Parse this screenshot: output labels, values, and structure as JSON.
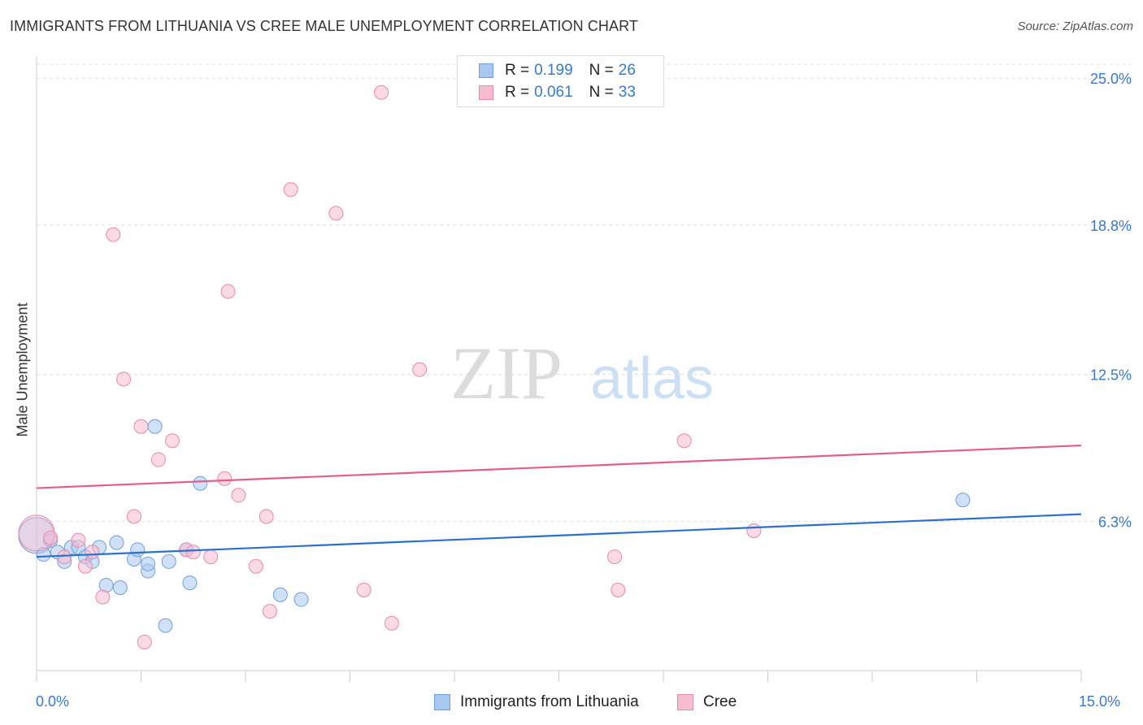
{
  "title": "IMMIGRANTS FROM LITHUANIA VS CREE MALE UNEMPLOYMENT CORRELATION CHART",
  "source": "Source: ZipAtlas.com",
  "watermark": {
    "zip": "ZIP",
    "atlas": "atlas"
  },
  "legend": {
    "rows": [
      {
        "r_label": "R = ",
        "r_value": "0.199",
        "n_label": "N = ",
        "n_value": "26"
      },
      {
        "r_label": "R = ",
        "r_value": "0.061",
        "n_label": "N = ",
        "n_value": "33"
      }
    ]
  },
  "bottom_legend": [
    "Immigrants from Lithuania",
    "Cree"
  ],
  "colors": {
    "blue_fill": "#a9c8f0",
    "blue_stroke": "#6f9fdc",
    "blue_line": "#2f6fcc",
    "pink_fill": "#f7bcd0",
    "pink_stroke": "#e88aa8",
    "pink_line": "#e0608b",
    "tick_text": "#3a78c9"
  },
  "chart_data": {
    "type": "scatter",
    "title": "IMMIGRANTS FROM LITHUANIA VS CREE MALE UNEMPLOYMENT CORRELATION CHART",
    "xlabel": "",
    "ylabel": "Male Unemployment",
    "xlim": [
      0,
      15
    ],
    "ylim": [
      0,
      25.9
    ],
    "x_tick_labels": [
      "0.0%",
      "15.0%"
    ],
    "y_ticks": [
      6.3,
      12.5,
      18.8,
      25.0
    ],
    "y_tick_labels": [
      "6.3%",
      "12.5%",
      "18.8%",
      "25.0%"
    ],
    "grid": true,
    "legend_position": "top-center",
    "series": [
      {
        "name": "Immigrants from Lithuania",
        "r": 0.199,
        "n": 26,
        "trend": {
          "x": [
            0,
            15
          ],
          "y": [
            4.8,
            6.6
          ]
        },
        "points": [
          {
            "x": 0.0,
            "y": 5.7,
            "big": true
          },
          {
            "x": 0.1,
            "y": 4.9
          },
          {
            "x": 0.2,
            "y": 5.5
          },
          {
            "x": 0.3,
            "y": 5.0
          },
          {
            "x": 0.4,
            "y": 4.6
          },
          {
            "x": 0.5,
            "y": 5.2
          },
          {
            "x": 0.6,
            "y": 5.2
          },
          {
            "x": 0.7,
            "y": 4.8
          },
          {
            "x": 0.8,
            "y": 4.6
          },
          {
            "x": 0.9,
            "y": 5.2
          },
          {
            "x": 1.0,
            "y": 3.6
          },
          {
            "x": 1.15,
            "y": 5.4
          },
          {
            "x": 1.2,
            "y": 3.5
          },
          {
            "x": 1.4,
            "y": 4.7
          },
          {
            "x": 1.45,
            "y": 5.1
          },
          {
            "x": 1.6,
            "y": 4.2
          },
          {
            "x": 1.6,
            "y": 4.5
          },
          {
            "x": 1.7,
            "y": 10.3
          },
          {
            "x": 1.85,
            "y": 1.9
          },
          {
            "x": 1.9,
            "y": 4.6
          },
          {
            "x": 2.15,
            "y": 5.1
          },
          {
            "x": 2.2,
            "y": 3.7
          },
          {
            "x": 2.35,
            "y": 7.9
          },
          {
            "x": 3.5,
            "y": 3.2
          },
          {
            "x": 3.8,
            "y": 3.0
          },
          {
            "x": 13.3,
            "y": 7.2
          }
        ]
      },
      {
        "name": "Cree",
        "r": 0.061,
        "n": 33,
        "trend": {
          "x": [
            0,
            15
          ],
          "y": [
            7.7,
            9.5
          ]
        },
        "points": [
          {
            "x": 0.0,
            "y": 5.8,
            "big": true
          },
          {
            "x": 0.2,
            "y": 5.6
          },
          {
            "x": 0.4,
            "y": 4.8
          },
          {
            "x": 0.6,
            "y": 5.5
          },
          {
            "x": 0.7,
            "y": 4.4
          },
          {
            "x": 0.8,
            "y": 5.0
          },
          {
            "x": 0.95,
            "y": 3.1
          },
          {
            "x": 1.1,
            "y": 18.4
          },
          {
            "x": 1.25,
            "y": 12.3
          },
          {
            "x": 1.4,
            "y": 6.5
          },
          {
            "x": 1.5,
            "y": 10.3
          },
          {
            "x": 1.55,
            "y": 1.2
          },
          {
            "x": 1.75,
            "y": 8.9
          },
          {
            "x": 1.95,
            "y": 9.7
          },
          {
            "x": 2.15,
            "y": 5.1
          },
          {
            "x": 2.25,
            "y": 5.0
          },
          {
            "x": 2.5,
            "y": 4.8
          },
          {
            "x": 2.7,
            "y": 8.1
          },
          {
            "x": 2.75,
            "y": 16.0
          },
          {
            "x": 2.9,
            "y": 7.4
          },
          {
            "x": 3.15,
            "y": 4.4
          },
          {
            "x": 3.3,
            "y": 6.5
          },
          {
            "x": 3.35,
            "y": 2.5
          },
          {
            "x": 3.65,
            "y": 20.3
          },
          {
            "x": 4.3,
            "y": 19.3
          },
          {
            "x": 4.7,
            "y": 3.4
          },
          {
            "x": 4.95,
            "y": 24.4
          },
          {
            "x": 5.1,
            "y": 2.0
          },
          {
            "x": 5.5,
            "y": 12.7
          },
          {
            "x": 8.3,
            "y": 4.8
          },
          {
            "x": 8.35,
            "y": 3.4
          },
          {
            "x": 9.3,
            "y": 9.7
          },
          {
            "x": 10.3,
            "y": 5.9
          }
        ]
      }
    ]
  }
}
